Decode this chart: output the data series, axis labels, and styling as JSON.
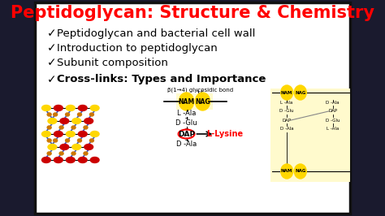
{
  "title": "Peptidoglycan: Structure & Chemistry",
  "title_color": "#FF0000",
  "title_fontsize": 15,
  "background_color": "#FFFFFF",
  "outer_bg": "#1a1a2e",
  "border_color": "#111111",
  "bullet_items": [
    "Peptidoglycan and bacterial cell wall",
    "Introduction to peptidoglycan",
    "Subunit composition",
    "Cross-links: Types and Importance"
  ],
  "bullet_color": "#000000",
  "bullet_fontsize": 9.5,
  "check_color": "#000000",
  "nam_color": "#FFD700",
  "nag_color": "#FFD700",
  "dap_border_color": "#FF0000",
  "lysine_color": "#FF0000",
  "diagram_label": "β(1→4) glycosidic bond",
  "red_ellipse_color": "#CC0000",
  "yellow_ellipse_color": "#FFD700",
  "blue_line_color": "#3355CC",
  "orange_dot_color": "#CC7700",
  "right_bg_color": "#FFFACD",
  "crosslink_bg": "#FFFACD"
}
